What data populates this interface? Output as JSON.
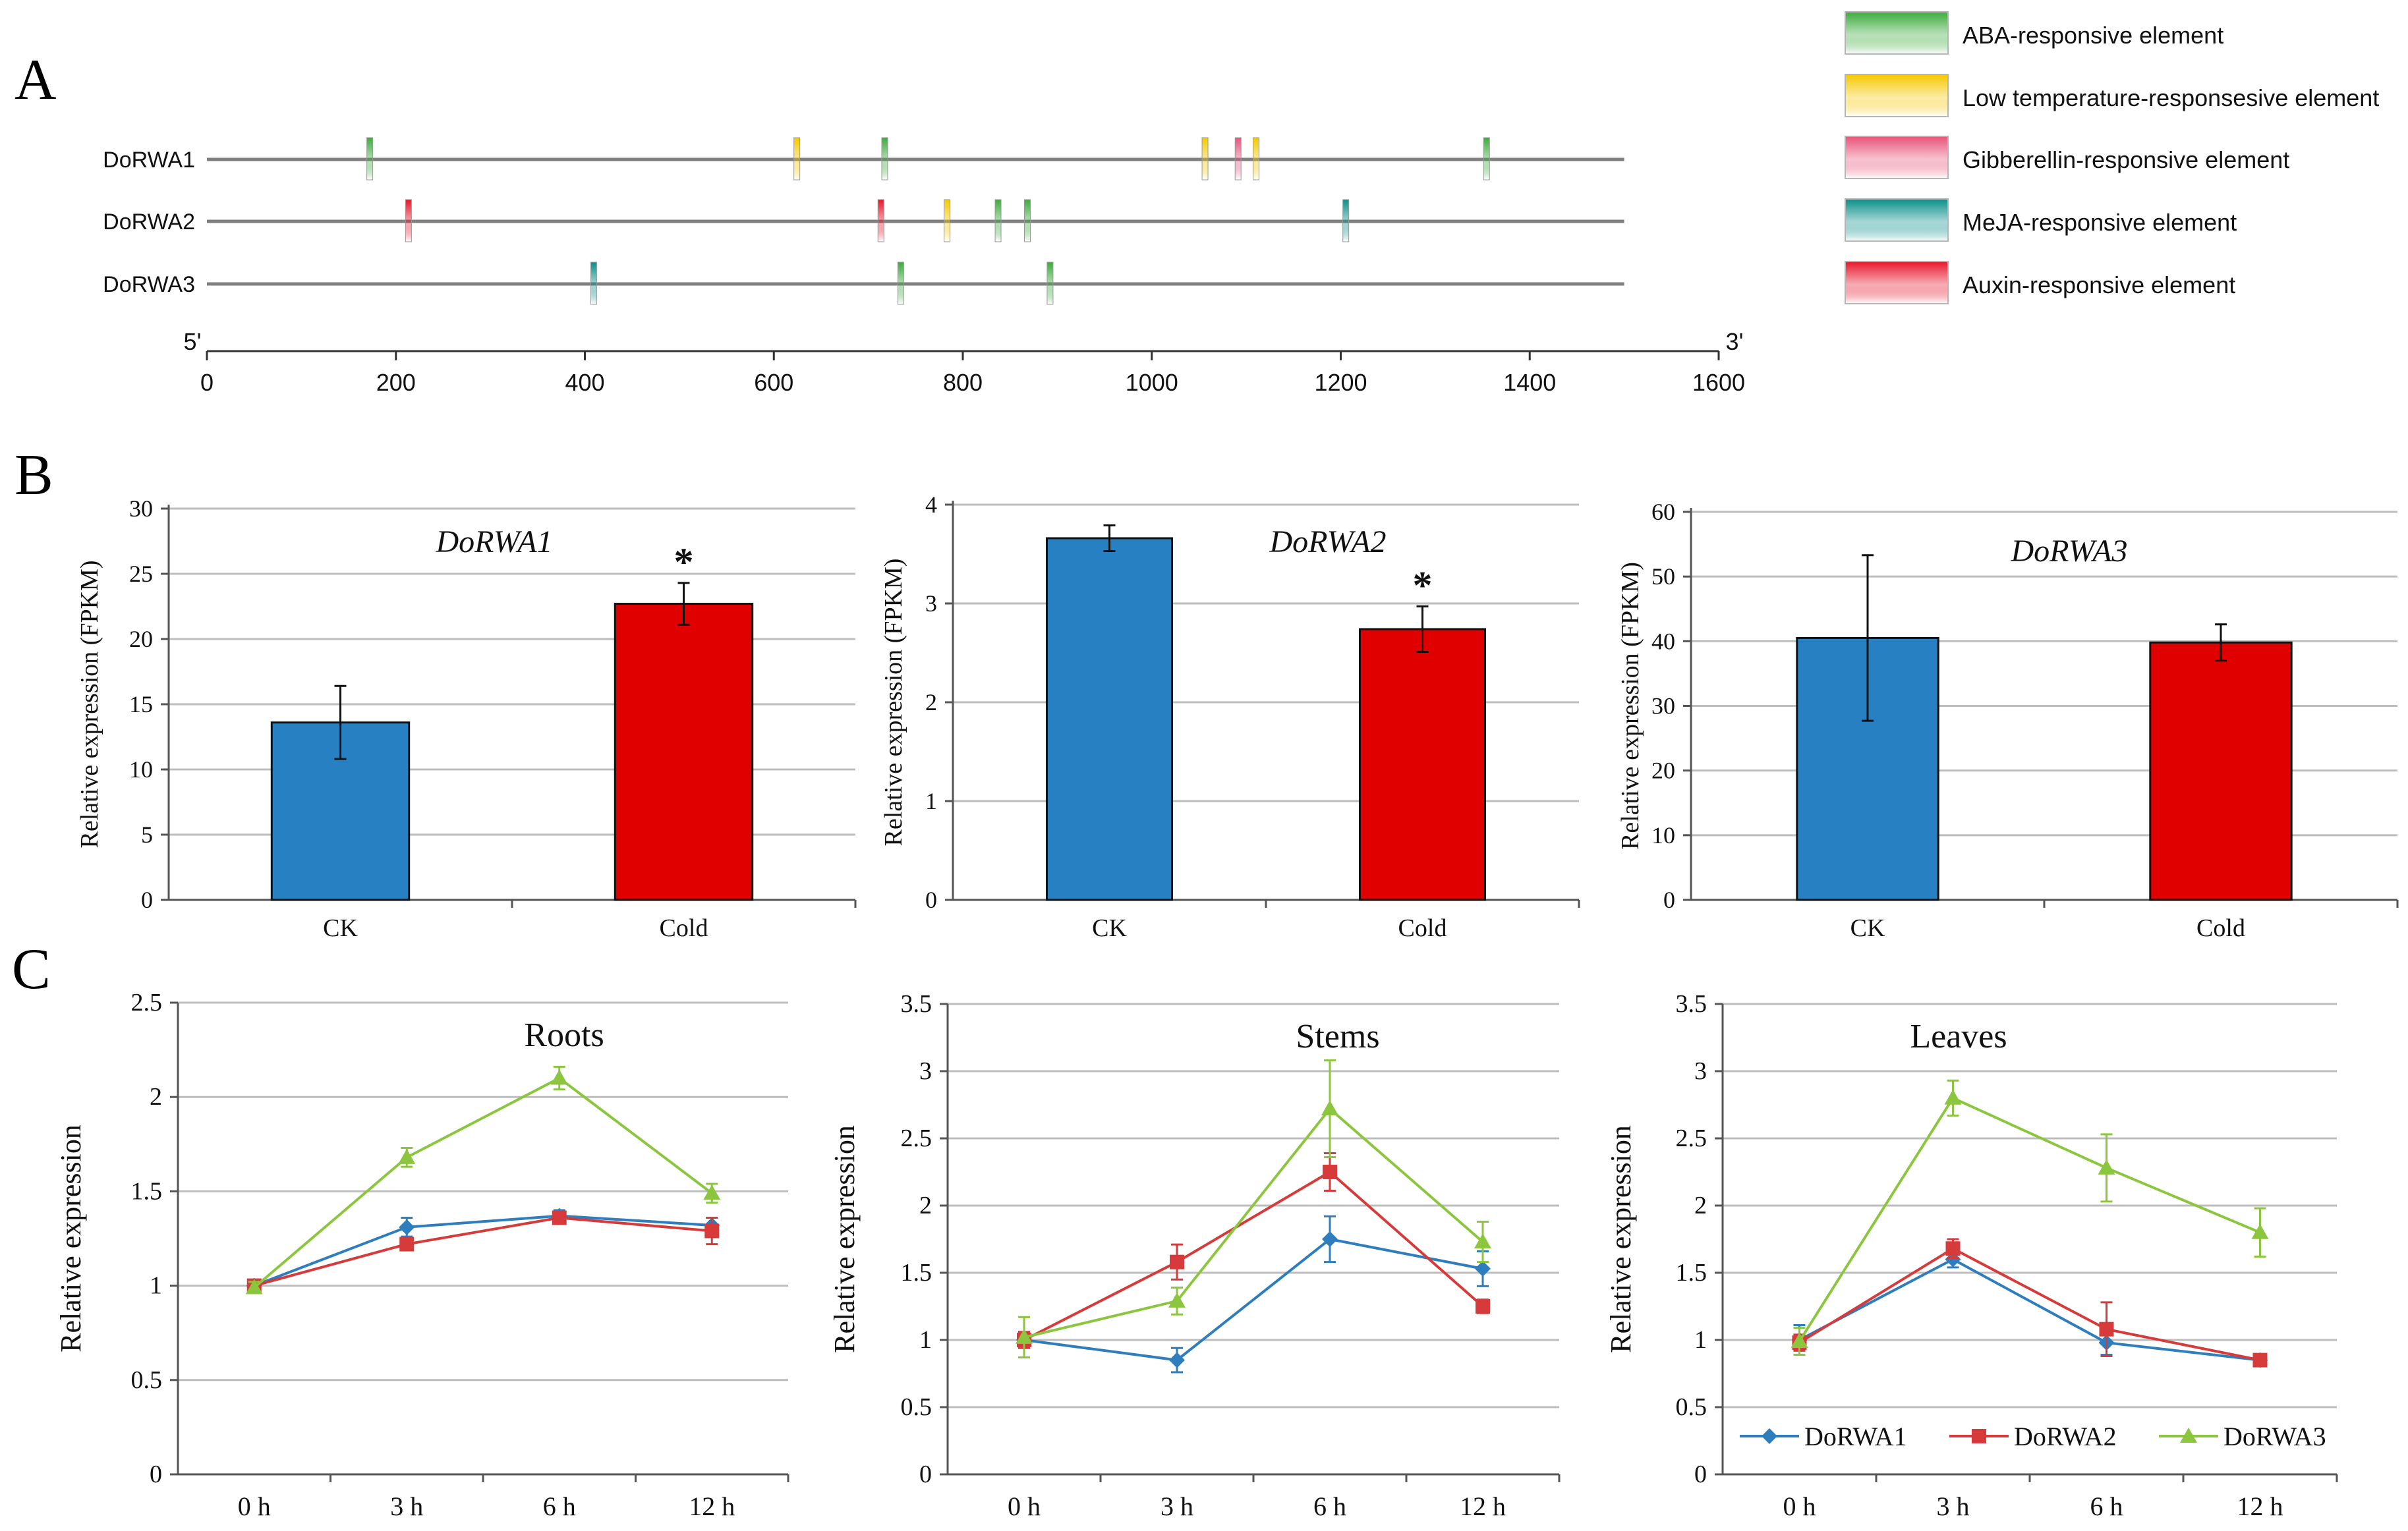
{
  "panel_labels": {
    "a": "A",
    "b": "B",
    "c": "C"
  },
  "colors": {
    "aba": "#3cab3c",
    "low_temp": "#f5c800",
    "gibberellin": "#e8547a",
    "meja": "#0a8f8a",
    "auxin": "#e8162d",
    "ck_bar": "#2780c2",
    "cold_bar": "#e00000",
    "dorwa1": "#2e7dbd",
    "dorwa2": "#d63a3a",
    "dorwa3": "#8cc63f",
    "grid": "#bdbdbd",
    "axis": "#555555",
    "track": "#7f7f7f"
  },
  "chart_data": [
    {
      "id": "A",
      "type": "promoter-element-map",
      "x": {
        "min": 0,
        "max": 1600,
        "ticks": [
          0,
          200,
          400,
          600,
          800,
          1000,
          1200,
          1400,
          1600
        ],
        "tick_labels": [
          "0",
          "200",
          "400",
          "600",
          "800",
          "1000",
          "1200",
          "1400",
          "1600"
        ],
        "left_end": "5'",
        "right_end": "3'"
      },
      "track_length": 1500,
      "legend": [
        {
          "key": "aba",
          "label": "ABA-responsive element"
        },
        {
          "key": "low_temp",
          "label": "Low temperature-responsesive element"
        },
        {
          "key": "gibberellin",
          "label": "Gibberellin-responsive element"
        },
        {
          "key": "meja",
          "label": "MeJA-responsive element"
        },
        {
          "key": "auxin",
          "label": "Auxin-responsive element"
        }
      ],
      "genes": [
        {
          "name": "DoRWA1",
          "elements": [
            {
              "pos": 172,
              "type": "aba"
            },
            {
              "pos": 624,
              "type": "low_temp"
            },
            {
              "pos": 717,
              "type": "aba"
            },
            {
              "pos": 1056,
              "type": "low_temp"
            },
            {
              "pos": 1091,
              "type": "gibberellin"
            },
            {
              "pos": 1110,
              "type": "low_temp"
            },
            {
              "pos": 1354,
              "type": "aba"
            }
          ]
        },
        {
          "name": "DoRWA2",
          "elements": [
            {
              "pos": 213,
              "type": "auxin"
            },
            {
              "pos": 713,
              "type": "auxin"
            },
            {
              "pos": 783,
              "type": "low_temp"
            },
            {
              "pos": 837,
              "type": "aba"
            },
            {
              "pos": 868,
              "type": "aba"
            },
            {
              "pos": 1205,
              "type": "meja"
            }
          ]
        },
        {
          "name": "DoRWA3",
          "elements": [
            {
              "pos": 409,
              "type": "meja"
            },
            {
              "pos": 734,
              "type": "aba"
            },
            {
              "pos": 892,
              "type": "aba"
            }
          ]
        }
      ]
    },
    {
      "id": "B1",
      "type": "bar",
      "title": "DoRWA1",
      "ylabel": "Relative expression (FPKM)",
      "categories": [
        "CK",
        "Cold"
      ],
      "values": [
        13.6,
        22.7
      ],
      "errors": [
        2.8,
        1.6
      ],
      "significance": [
        "",
        "*"
      ],
      "ylim": [
        0,
        30
      ],
      "yticks": [
        0,
        5,
        10,
        15,
        20,
        25,
        30
      ],
      "ytick_labels": [
        "0",
        "5",
        "10",
        "15",
        "20",
        "25",
        "30"
      ]
    },
    {
      "id": "B2",
      "type": "bar",
      "title": "DoRWA2",
      "ylabel": "Relative expression (FPKM)",
      "categories": [
        "CK",
        "Cold"
      ],
      "values": [
        3.66,
        2.74
      ],
      "errors": [
        0.13,
        0.23
      ],
      "significance": [
        "",
        "*"
      ],
      "ylim": [
        0,
        4
      ],
      "yticks": [
        0,
        1,
        2,
        3,
        4
      ],
      "ytick_labels": [
        "0",
        "1",
        "2",
        "3",
        "4"
      ]
    },
    {
      "id": "B3",
      "type": "bar",
      "title": "DoRWA3",
      "ylabel": "Relative expression (FPKM)",
      "categories": [
        "CK",
        "Cold"
      ],
      "values": [
        40.5,
        39.8
      ],
      "errors": [
        12.8,
        2.8
      ],
      "significance": [
        "",
        ""
      ],
      "ylim": [
        0,
        60
      ],
      "yticks": [
        0,
        10,
        20,
        30,
        40,
        50,
        60
      ],
      "ytick_labels": [
        "0",
        "10",
        "20",
        "30",
        "40",
        "50",
        "60"
      ]
    },
    {
      "id": "C1",
      "type": "line",
      "title": "Roots",
      "ylabel": "Relative expression",
      "categories": [
        "0 h",
        "3 h",
        "6 h",
        "12 h"
      ],
      "ylim": [
        0,
        2.5
      ],
      "yticks": [
        0,
        0.5,
        1,
        1.5,
        2,
        2.5
      ],
      "ytick_labels": [
        "0",
        "0.5",
        "1",
        "1.5",
        "2",
        "2.5"
      ],
      "series": [
        {
          "name": "DoRWA1",
          "values": [
            1.0,
            1.31,
            1.37,
            1.32
          ],
          "errors": [
            0.03,
            0.05,
            0.03,
            0.04
          ]
        },
        {
          "name": "DoRWA2",
          "values": [
            1.0,
            1.22,
            1.36,
            1.29
          ],
          "errors": [
            0.03,
            0.03,
            0.03,
            0.07
          ]
        },
        {
          "name": "DoRWA3",
          "values": [
            0.99,
            1.68,
            2.1,
            1.49
          ],
          "errors": [
            0.03,
            0.05,
            0.06,
            0.05
          ]
        }
      ]
    },
    {
      "id": "C2",
      "type": "line",
      "title": "Stems",
      "ylabel": "Relative expression",
      "categories": [
        "0 h",
        "3 h",
        "6 h",
        "12 h"
      ],
      "ylim": [
        0,
        3.5
      ],
      "yticks": [
        0,
        0.5,
        1,
        1.5,
        2,
        2.5,
        3,
        3.5
      ],
      "ytick_labels": [
        "0",
        "0.5",
        "1",
        "1.5",
        "2",
        "2.5",
        "3",
        "3.5"
      ],
      "series": [
        {
          "name": "DoRWA1",
          "values": [
            1.0,
            0.85,
            1.75,
            1.53
          ],
          "errors": [
            0.05,
            0.09,
            0.17,
            0.13
          ]
        },
        {
          "name": "DoRWA2",
          "values": [
            1.0,
            1.58,
            2.25,
            1.25
          ],
          "errors": [
            0.06,
            0.13,
            0.14,
            0.05
          ]
        },
        {
          "name": "DoRWA3",
          "values": [
            1.02,
            1.29,
            2.72,
            1.73
          ],
          "errors": [
            0.15,
            0.1,
            0.36,
            0.15
          ]
        }
      ]
    },
    {
      "id": "C3",
      "type": "line",
      "title": "Leaves",
      "ylabel": "Relative expression",
      "categories": [
        "0 h",
        "3 h",
        "6 h",
        "12 h"
      ],
      "ylim": [
        0,
        3.5
      ],
      "yticks": [
        0,
        0.5,
        1,
        1.5,
        2,
        2.5,
        3,
        3.5
      ],
      "ytick_labels": [
        "0",
        "0.5",
        "1",
        "1.5",
        "2",
        "2.5",
        "3",
        "3.5"
      ],
      "legend": [
        "DoRWA1",
        "DoRWA2",
        "DoRWA3"
      ],
      "series": [
        {
          "name": "DoRWA1",
          "values": [
            1.0,
            1.6,
            0.98,
            0.85
          ],
          "errors": [
            0.11,
            0.06,
            0.09,
            0.03
          ]
        },
        {
          "name": "DoRWA2",
          "values": [
            0.98,
            1.68,
            1.08,
            0.85
          ],
          "errors": [
            0.06,
            0.07,
            0.2,
            0.04
          ]
        },
        {
          "name": "DoRWA3",
          "values": [
            0.99,
            2.8,
            2.28,
            1.8
          ],
          "errors": [
            0.1,
            0.13,
            0.25,
            0.18
          ]
        }
      ]
    }
  ]
}
